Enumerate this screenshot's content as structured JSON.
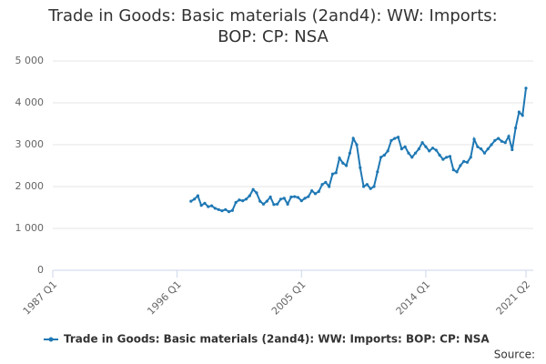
{
  "chart_data": {
    "type": "line",
    "title": "Trade in Goods: Basic materials (2and4): WW: Imports: BOP: CP: NSA",
    "source": "Source:",
    "categories": [
      "1987 Q1",
      null,
      null,
      null,
      null,
      null,
      null,
      null,
      null,
      null,
      null,
      null,
      null,
      null,
      null,
      null,
      null,
      null,
      null,
      null,
      null,
      null,
      null,
      null,
      null,
      null,
      null,
      null,
      null,
      null,
      null,
      null,
      null,
      null,
      null,
      null,
      "1996 Q1",
      null,
      null,
      null,
      null,
      null,
      null,
      null,
      null,
      null,
      null,
      null,
      null,
      null,
      null,
      null,
      null,
      null,
      null,
      null,
      null,
      null,
      null,
      null,
      null,
      null,
      null,
      null,
      null,
      null,
      null,
      null,
      null,
      null,
      null,
      null,
      "2005 Q1",
      null,
      null,
      null,
      null,
      null,
      null,
      null,
      null,
      null,
      null,
      null,
      null,
      null,
      null,
      null,
      null,
      null,
      null,
      null,
      null,
      null,
      null,
      null,
      null,
      null,
      null,
      null,
      null,
      null,
      null,
      null,
      null,
      null,
      null,
      null,
      "2014 Q1",
      null,
      null,
      null,
      null,
      null,
      null,
      null,
      null,
      null,
      null,
      null,
      null,
      null,
      null,
      null,
      null,
      null,
      null,
      null,
      null,
      null,
      null,
      null,
      null,
      null,
      null,
      null,
      null,
      "2021 Q2"
    ],
    "series": [
      {
        "name": "Trade in Goods: Basic materials (2and4): WW: Imports: BOP: CP: NSA",
        "color": "#1f78b4",
        "values": [
          null,
          null,
          null,
          null,
          null,
          null,
          null,
          null,
          null,
          null,
          null,
          null,
          null,
          null,
          null,
          null,
          null,
          null,
          null,
          null,
          null,
          null,
          null,
          null,
          null,
          null,
          null,
          null,
          null,
          null,
          null,
          null,
          null,
          null,
          null,
          null,
          null,
          null,
          null,
          null,
          1650,
          1700,
          1780,
          1550,
          1600,
          1520,
          1540,
          1480,
          1450,
          1420,
          1450,
          1400,
          1430,
          1620,
          1680,
          1660,
          1700,
          1780,
          1930,
          1850,
          1650,
          1580,
          1650,
          1750,
          1570,
          1580,
          1700,
          1720,
          1580,
          1750,
          1760,
          1740,
          1660,
          1720,
          1760,
          1900,
          1830,
          1880,
          2050,
          2100,
          2000,
          2300,
          2330,
          2680,
          2560,
          2500,
          2800,
          3150,
          3000,
          2450,
          2000,
          2050,
          1950,
          2000,
          2350,
          2700,
          2750,
          2850,
          3100,
          3150,
          3180,
          2900,
          2950,
          2800,
          2700,
          2800,
          2900,
          3050,
          2950,
          2850,
          2920,
          2870,
          2750,
          2650,
          2700,
          2720,
          2400,
          2350,
          2500,
          2600,
          2580,
          2700,
          3130,
          2950,
          2900,
          2800,
          2900,
          3000,
          3100,
          3150,
          3080,
          3050,
          3200,
          2880,
          3400,
          3780,
          3700,
          4350
        ]
      }
    ],
    "ylim": [
      0,
      5000
    ],
    "yticks": [
      0,
      {
        "value": 1000,
        "label": "1 000"
      },
      {
        "value": 2000,
        "label": "2 000"
      },
      {
        "value": 3000,
        "label": "3 000"
      },
      {
        "value": 4000,
        "label": "4 000"
      },
      {
        "value": 5000,
        "label": "5 000"
      }
    ],
    "grid": true
  }
}
